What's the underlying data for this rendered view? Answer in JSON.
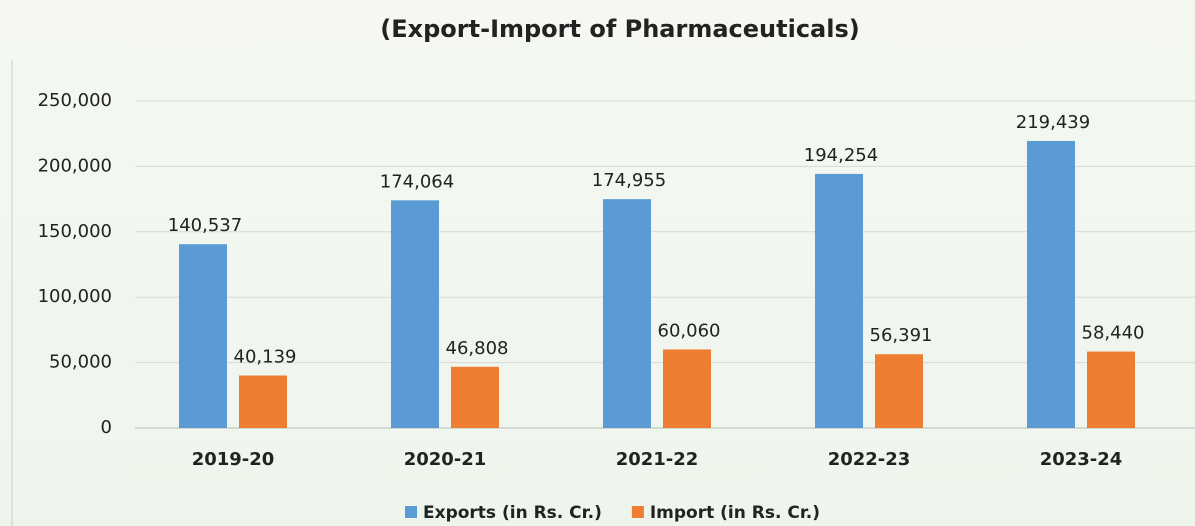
{
  "chart_data": {
    "type": "bar",
    "title": "(Export-Import of Pharmaceuticals)",
    "categories": [
      "2019-20",
      "2020-21",
      "2021-22",
      "2022-23",
      "2023-24"
    ],
    "series": [
      {
        "name": "Exports (in Rs. Cr.)",
        "color": "#5b9bd5",
        "values": [
          140537,
          174064,
          174955,
          194254,
          219439
        ],
        "value_labels": [
          "140,537",
          "174,064",
          "174,955",
          "194,254",
          "219,439"
        ]
      },
      {
        "name": "Import (in Rs. Cr.)",
        "color": "#ed7d31",
        "values": [
          40139,
          46808,
          60060,
          56391,
          58440
        ],
        "value_labels": [
          "40,139",
          "46,808",
          "60,060",
          "56,391",
          "58,440"
        ]
      }
    ],
    "ylim": [
      0,
      250000
    ],
    "yticks": [
      0,
      {
        "value": 50000,
        "label": "50,000"
      },
      {
        "value": 100000,
        "label": "100,000"
      },
      {
        "value": 150000,
        "label": "150,000"
      },
      {
        "value": 200000,
        "label": "200,000"
      },
      {
        "value": 250000,
        "label": "250,000"
      }
    ],
    "grid": true,
    "legend": "bottom"
  }
}
